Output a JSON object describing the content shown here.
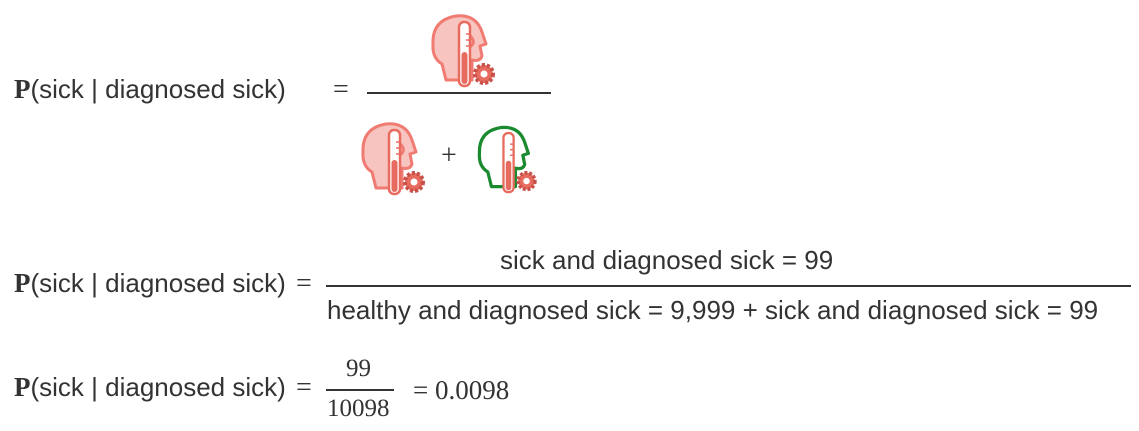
{
  "eq1": {
    "prob_symbol": "P",
    "lhs_text": "(sick | diagnosed sick)",
    "equals": "=",
    "plus": "+",
    "icons": {
      "numerator": "sick-diagnosed-sick-icon",
      "denominator_left": "sick-diagnosed-sick-icon",
      "denominator_right": "healthy-diagnosed-sick-icon"
    },
    "colors": {
      "sick": "#f07b72",
      "healthy": "#1a8a2f",
      "test_tube": "#e86b60"
    }
  },
  "eq2": {
    "prob_symbol": "P",
    "lhs_text": "(sick | diagnosed sick)",
    "equals": "=",
    "numerator": "sick and diagnosed sick = 99",
    "denominator": "healthy and diagnosed sick = 9,999 + sick and diagnosed sick = 99"
  },
  "eq3": {
    "prob_symbol": "P",
    "lhs_text": "(sick | diagnosed sick)",
    "equals": "=",
    "numerator": "99",
    "denominator": "10098",
    "result": "= 0.0098"
  }
}
